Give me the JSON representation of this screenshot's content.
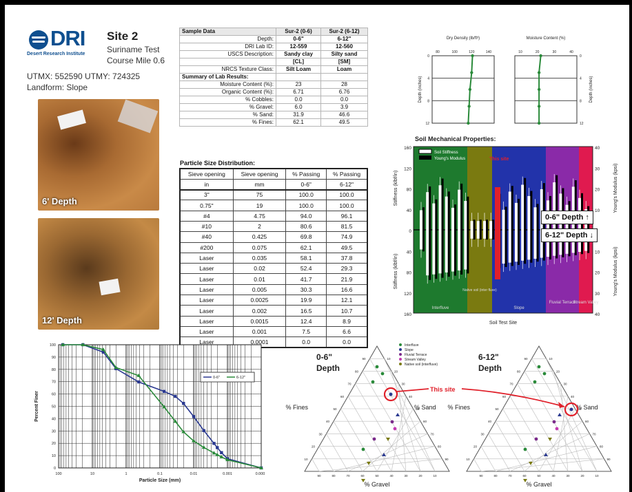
{
  "header": {
    "logo_text": "DRI",
    "logo_subtext": "Desert Research Institute",
    "site_title": "Site 2",
    "subtitle_line1": "Suriname Test",
    "subtitle_line2": "Course Mile 0.6",
    "utm_line": "UTMX: 552590  UTMY: 724325",
    "landform_line": "Landform:  Slope"
  },
  "photos": [
    {
      "label": "6' Depth"
    },
    {
      "label": "12' Depth"
    }
  ],
  "sample_table": {
    "headers": [
      "Sample Data",
      "Sur-2 (0-6)",
      "Sur-2 (6-12)"
    ],
    "rows": [
      {
        "label": "Depth:",
        "a": "0-6\"",
        "b": "6-12\"",
        "bold": true
      },
      {
        "label": "DRI Lab ID:",
        "a": "12-559",
        "b": "12-560",
        "bold": true
      },
      {
        "label": "USCS Description:",
        "a": "Sandy clay",
        "b": "Silty sand",
        "bold": true
      },
      {
        "label": "",
        "a": "[CL]",
        "b": "[SM]",
        "bold": true
      },
      {
        "label": "NRCS Texture Class:",
        "a": "Silt Loam",
        "b": "Loam",
        "bold": true
      },
      {
        "label": "Summary of Lab Results:",
        "a": "",
        "b": "",
        "section": true
      },
      {
        "label": "Moisture Content (%):",
        "a": "23",
        "b": "28"
      },
      {
        "label": "Organic Content (%):",
        "a": "6.71",
        "b": "6.76"
      },
      {
        "label": "% Cobbles:",
        "a": "0.0",
        "b": "0.0"
      },
      {
        "label": "% Gravel:",
        "a": "6.0",
        "b": "3.9"
      },
      {
        "label": "% Sand:",
        "a": "31.9",
        "b": "46.6"
      },
      {
        "label": "% Fines:",
        "a": "62.1",
        "b": "49.5"
      }
    ]
  },
  "psd_table": {
    "title": "Particle Size Distribution:",
    "headers": [
      "Sieve opening",
      "Sieve opening",
      "% Passing",
      "% Passing"
    ],
    "units": [
      "in",
      "mm",
      "0-6\"",
      "6-12\""
    ],
    "rows": [
      [
        "3\"",
        "75",
        "100.0",
        "100.0"
      ],
      [
        "0.75\"",
        "19",
        "100.0",
        "100.0"
      ],
      [
        "#4",
        "4.75",
        "94.0",
        "96.1"
      ],
      [
        "#10",
        "2",
        "80.6",
        "81.5"
      ],
      [
        "#40",
        "0.425",
        "69.8",
        "74.9"
      ],
      [
        "#200",
        "0.075",
        "62.1",
        "49.5"
      ],
      [
        "Laser",
        "0.035",
        "58.1",
        "37.8"
      ],
      [
        "Laser",
        "0.02",
        "52.4",
        "29.3"
      ],
      [
        "Laser",
        "0.01",
        "41.7",
        "21.9"
      ],
      [
        "Laser",
        "0.005",
        "30.3",
        "16.6"
      ],
      [
        "Laser",
        "0.0025",
        "19.9",
        "12.1"
      ],
      [
        "Laser",
        "0.002",
        "16.5",
        "10.7"
      ],
      [
        "Laser",
        "0.0015",
        "12.4",
        "8.9"
      ],
      [
        "Laser",
        "0.001",
        "7.5",
        "6.6"
      ],
      [
        "Laser",
        "0.0001",
        "0.0",
        "0.0"
      ]
    ]
  },
  "profile_charts": {
    "dry_density": {
      "title": "Dry Density (lb/ft³)",
      "ticks": [
        "80",
        "100",
        "120",
        "140"
      ],
      "values": [
        [
          121,
          0
        ],
        [
          120,
          3
        ],
        [
          118,
          6
        ],
        [
          117,
          9
        ],
        [
          116,
          12
        ]
      ]
    },
    "moisture": {
      "title": "Moisture Content (%)",
      "ticks": [
        "10",
        "20",
        "30",
        "40"
      ],
      "values": [
        [
          22,
          0
        ],
        [
          21,
          3
        ],
        [
          21,
          6
        ],
        [
          21,
          9
        ],
        [
          21,
          12
        ]
      ]
    },
    "depth_label": "Depth (inches)",
    "depth_ticks": [
      "0",
      "4",
      "8",
      "12"
    ]
  },
  "mech": {
    "title": "Soil Mechanical Properties:",
    "legend": [
      "Soil Stiffness",
      "Young's Modulus"
    ],
    "y_left": "Stiffness (klbf/in)",
    "y_right": "Young's Modulus (kpsi)",
    "x_label": "Soil Test Site",
    "left_ticks": [
      "160",
      "120",
      "80",
      "40",
      "0",
      "40",
      "80",
      "120",
      "160"
    ],
    "right_ticks": [
      "40",
      "30",
      "20",
      "10",
      "0",
      "10",
      "20",
      "30",
      "40"
    ],
    "groups": [
      "Interfluve",
      "Native soil (inter fluve)",
      "Slope",
      "Fluvial Terrace",
      "Stream Valley"
    ],
    "this_site": "This site",
    "depth_a": "0-6\" Depth",
    "depth_b": "6-12\" Depth",
    "colors": {
      "interfluve": "#1e7a2e",
      "native": "#7a7a10",
      "slope": "#2233aa",
      "fluvial": "#8a2aa8",
      "stream": "#e01a4f"
    }
  },
  "chart_data": [
    {
      "type": "line",
      "xlabel": "Particle Size (mm)",
      "ylabel": "Percent Finer",
      "x_scale": "log",
      "xlim": [
        100,
        0.0001
      ],
      "ylim": [
        0,
        100
      ],
      "x_ticks": [
        "100",
        "10",
        "1",
        "0.1",
        "0.01",
        "0.001",
        "0.0001"
      ],
      "y_ticks": [
        "0",
        "10",
        "20",
        "30",
        "40",
        "50",
        "60",
        "70",
        "80",
        "90",
        "100"
      ],
      "series": [
        {
          "name": "0-6\"",
          "color": "#2a3990",
          "marker": "square",
          "x": [
            75,
            19,
            4.75,
            2,
            0.425,
            0.075,
            0.035,
            0.02,
            0.01,
            0.005,
            0.0025,
            0.002,
            0.0015,
            0.001,
            0.0001
          ],
          "y": [
            100,
            100,
            94,
            80.6,
            69.8,
            62.1,
            58.1,
            52.4,
            41.7,
            30.3,
            19.9,
            16.5,
            12.4,
            7.5,
            0
          ]
        },
        {
          "name": "6-12\"",
          "color": "#2a8a3a",
          "marker": "triangle",
          "x": [
            75,
            19,
            4.75,
            2,
            0.425,
            0.075,
            0.035,
            0.02,
            0.01,
            0.005,
            0.0025,
            0.002,
            0.0015,
            0.001,
            0.0001
          ],
          "y": [
            100,
            100,
            96.1,
            81.5,
            74.9,
            49.5,
            37.8,
            29.3,
            21.9,
            16.6,
            12.1,
            10.7,
            8.9,
            6.6,
            0
          ]
        }
      ]
    }
  ],
  "ternary": {
    "left_title1": "0-6\"",
    "left_title2": "Depth",
    "right_title1": "6-12\"",
    "right_title2": "Depth",
    "fines": "% Fines",
    "sand": "% Sand",
    "gravel": "% Gravel",
    "this_site": "This site",
    "legend": [
      "Interfluve",
      "Slope",
      "Fluvial Terrace",
      "Stream Valley",
      "Native soil (interfluve)"
    ],
    "legend_colors": [
      "#2a8a3a",
      "#2a3990",
      "#7a2a8a",
      "#c23ab0",
      "#7a7a10"
    ],
    "tick_labels": [
      "10",
      "20",
      "30",
      "40",
      "50",
      "60",
      "70",
      "80",
      "90",
      "100"
    ]
  }
}
